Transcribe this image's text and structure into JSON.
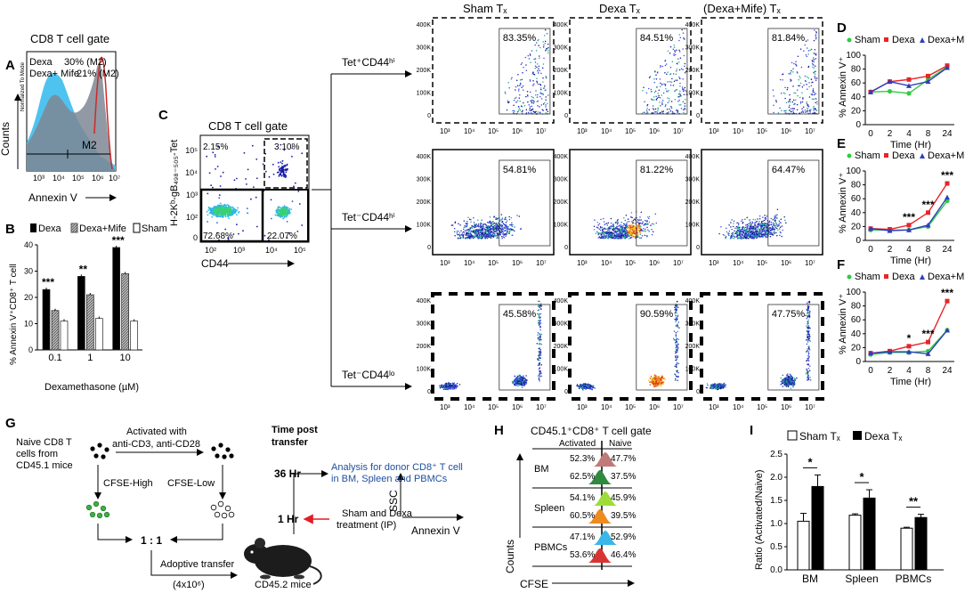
{
  "panel_letters": {
    "a": "A",
    "b": "B",
    "c": "C",
    "d": "D",
    "e": "E",
    "f": "F",
    "g": "G",
    "h": "H",
    "i": "I"
  },
  "panelA": {
    "title": "CD8 T cell gate",
    "legend_dexa": "Dexa",
    "dexa_pct": "30% (M2)",
    "legend_mife": "Dexa+ Mife",
    "mife_pct": "21% (M2)",
    "ylabel": "Counts",
    "ylabel_small": "Normalized To Mode",
    "xlabel": "Annexin V",
    "gate": "M2",
    "ticks": [
      "10³",
      "10⁴",
      "10⁵",
      "10⁶",
      "10⁷"
    ],
    "colors": {
      "dexa": "#cc2a2a",
      "mife": "#4fc3f0",
      "gray": "#7d8794"
    }
  },
  "panelB": {
    "legend": [
      "Dexa",
      "Dexa+Mife",
      "Sham"
    ],
    "ylabel": "% Annexin V⁺CD8⁺ T cell",
    "xlabel": "Dexamethasone (µM)",
    "chart_data": {
      "type": "bar",
      "categories": [
        "0.1",
        "1",
        "10"
      ],
      "series": [
        {
          "name": "Dexa",
          "values": [
            23,
            28,
            39
          ]
        },
        {
          "name": "Dexa+Mife",
          "values": [
            15,
            21,
            29
          ]
        },
        {
          "name": "Sham",
          "values": [
            11,
            12,
            11
          ]
        }
      ],
      "ylim": [
        0,
        40
      ],
      "yticks": [
        "0",
        "10",
        "20",
        "30",
        "40"
      ],
      "sig": [
        "***",
        "**",
        "***"
      ]
    }
  },
  "panelC": {
    "title": "CD8 T cell gate",
    "ylabel": "H-2Kᵇ-gB₄₉₈₋₅₀₅-Tet",
    "xlabel": "CD44",
    "q_tl": "2.15%",
    "q_tr": "3.10%",
    "q_bl": "72.68%",
    "q_br": "22.07%",
    "yticks": [
      "10⁵",
      "10⁴",
      "10³",
      "10²",
      "0"
    ],
    "xticks": [
      "10²",
      "10³",
      "10⁴",
      "10⁵"
    ]
  },
  "rows": [
    "Tet⁺CD44ʰⁱ",
    "Tet⁻CD44ʰⁱ",
    "Tet⁻CD44ˡᵒ"
  ],
  "columns": [
    "Sham Tₓ",
    "Dexa Tₓ",
    "(Dexa+Mife) Tₓ"
  ],
  "flow_pcts": [
    [
      "83.35%",
      "84.51%",
      "81.84%"
    ],
    [
      "54.81%",
      "81.22%",
      "64.47%"
    ],
    [
      "45.58%",
      "90.59%",
      "47.75%"
    ]
  ],
  "flow_yticks": [
    "400K",
    "300K",
    "200K",
    "100K",
    "0"
  ],
  "flow_xticks": [
    "10³",
    "10⁴",
    "10⁵",
    "10⁶",
    "10⁷"
  ],
  "flow_axes": {
    "y": "SSC",
    "x": "Annexin V"
  },
  "time_panels": {
    "legend": [
      "Sham",
      "Dexa",
      "Dexa+Mife"
    ],
    "ylabel": "% Annexin V⁺",
    "xlabel": "Time (Hr)",
    "xticks": [
      "0",
      "2",
      "4",
      "8",
      "24"
    ],
    "yticks": [
      "0",
      "20",
      "40",
      "60",
      "80",
      "100"
    ],
    "colors": {
      "sham": "#2ecc40",
      "dexa": "#e8232a",
      "mife": "#2f3dbd"
    },
    "chart_data": [
      {
        "type": "line",
        "panel": "D",
        "x": [
          0,
          2,
          4,
          8,
          24
        ],
        "series": [
          {
            "name": "Sham",
            "values": [
              47,
              48,
              45,
              65,
              83
            ]
          },
          {
            "name": "Dexa",
            "values": [
              47,
              62,
              65,
              70,
              85
            ]
          },
          {
            "name": "Dexa+Mife",
            "values": [
              47,
              62,
              56,
              62,
              82
            ]
          }
        ],
        "ylim": [
          0,
          100
        ],
        "sig": []
      },
      {
        "type": "line",
        "panel": "E",
        "x": [
          0,
          2,
          4,
          8,
          24
        ],
        "series": [
          {
            "name": "Sham",
            "values": [
              15,
              15,
              15,
              20,
              57
            ]
          },
          {
            "name": "Dexa",
            "values": [
              17,
              16,
              22,
              40,
              82
            ]
          },
          {
            "name": "Dexa+Mife",
            "values": [
              17,
              14,
              15,
              22,
              62
            ]
          }
        ],
        "ylim": [
          0,
          100
        ],
        "sig": [
          "",
          "",
          "***",
          "***",
          "***"
        ]
      },
      {
        "type": "line",
        "panel": "F",
        "x": [
          0,
          2,
          4,
          8,
          24
        ],
        "series": [
          {
            "name": "Sham",
            "values": [
              10,
              13,
              13,
              15,
              45
            ]
          },
          {
            "name": "Dexa",
            "values": [
              12,
              15,
              22,
              28,
              87
            ]
          },
          {
            "name": "Dexa+Mife",
            "values": [
              12,
              14,
              14,
              11,
              45
            ]
          }
        ],
        "ylim": [
          0,
          100
        ],
        "sig": [
          "",
          "",
          "*",
          "***",
          "***"
        ]
      }
    ]
  },
  "panelG": {
    "naive": "Naive CD8 T cells from CD45.1 mice",
    "activated": "Activated with anti-CD3, anti-CD28",
    "cfse_high": "CFSE-High",
    "cfse_low": "CFSE-Low",
    "ratio": "1 : 1",
    "adoptive": "Adoptive transfer (4x10⁶)",
    "mice": "CD45.2 mice",
    "time_title": "Time post transfer",
    "t36": "36 Hr",
    "t1": "1 Hr",
    "analysis": "Analysis for donor CD8⁺ T cell in BM, Spleen and PBMCs",
    "treatment": "Sham and Dexa treatment (IP)"
  },
  "panelH": {
    "title": "CD45.1⁺CD8⁺ T cell gate",
    "col_act": "Activated",
    "col_naive": "Naive",
    "tissues": [
      "BM",
      "Spleen",
      "PBMCs"
    ],
    "act": [
      [
        "52.3%",
        "62.5%"
      ],
      [
        "54.1%",
        "60.5%"
      ],
      [
        "47.1%",
        "53.6%"
      ]
    ],
    "naive": [
      [
        "47.7%",
        "37.5%"
      ],
      [
        "45.9%",
        "39.5%"
      ],
      [
        "52.9%",
        "46.4%"
      ]
    ],
    "ylabel": "Counts",
    "xlabel": "CFSE"
  },
  "panelI": {
    "legend": [
      "Sham Tₓ",
      "Dexa Tₓ"
    ],
    "ylabel": "Ratio (Activated/Naive)",
    "chart_data": {
      "type": "bar",
      "categories": [
        "BM",
        "Spleen",
        "PBMCs"
      ],
      "series": [
        {
          "name": "Sham Tₓ",
          "values": [
            1.05,
            1.18,
            0.9
          ]
        },
        {
          "name": "Dexa Tₓ",
          "values": [
            1.8,
            1.55,
            1.13
          ]
        }
      ],
      "ylim": [
        0,
        2.5
      ],
      "yticks": [
        "0.0",
        "0.5",
        "1.0",
        "1.5",
        "2.0",
        "2.5"
      ],
      "sig": [
        "*",
        "*",
        "**"
      ]
    }
  }
}
